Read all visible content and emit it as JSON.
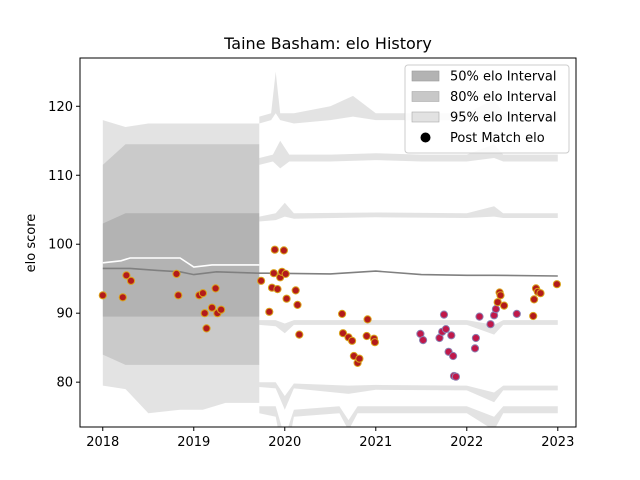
{
  "chart_data": {
    "type": "scatter",
    "title": "Taine Basham: elo History",
    "xlabel": "",
    "ylabel": "elo score",
    "xlim": [
      2017.75,
      2023.2
    ],
    "ylim": [
      73.5,
      127
    ],
    "x_ticks": [
      2018,
      2019,
      2020,
      2021,
      2022,
      2023
    ],
    "x_tick_labels": [
      "2018",
      "2019",
      "2020",
      "2021",
      "2022",
      "2023"
    ],
    "y_ticks": [
      80,
      90,
      100,
      110,
      120
    ],
    "y_tick_labels": [
      "80",
      "90",
      "100",
      "110",
      "120"
    ],
    "grid": false,
    "legend_position": "upper right",
    "legend": [
      {
        "label": "50% elo Interval",
        "kind": "patch",
        "color": "#b3b3b3"
      },
      {
        "label": "80% elo Interval",
        "kind": "patch",
        "color": "#c8c8c8"
      },
      {
        "label": "95% elo Interval",
        "kind": "patch",
        "color": "#e2e2e2"
      },
      {
        "label": "Post Match elo",
        "kind": "marker",
        "color": "#000000"
      }
    ],
    "intervals": {
      "pre_2019_8": {
        "x": [
          2018.0,
          2018.25,
          2018.5,
          2018.85,
          2019.1,
          2019.35,
          2019.72
        ],
        "p95_hi": [
          118,
          117,
          117.5,
          117.5,
          117.5,
          117.5,
          117.5
        ],
        "p95_lo": [
          79.5,
          79,
          75.5,
          76,
          76,
          77,
          77
        ],
        "p80_hi": [
          111.5,
          114.5,
          114.5,
          114.5,
          114.5,
          114.5,
          114.5
        ],
        "p80_lo": [
          84,
          82.5,
          82.5,
          82.5,
          82.5,
          82.5,
          82.5
        ],
        "p50_hi": [
          103,
          104.5,
          104.5,
          104.5,
          104.5,
          104.5,
          104.5
        ],
        "p50_lo": [
          89.5,
          89.5,
          89.5,
          89.5,
          89.5,
          89.5,
          89.5
        ]
      }
    },
    "mean_line": {
      "x": [
        2018.0,
        2018.3,
        2018.6,
        2018.85,
        2019.0,
        2019.25,
        2019.72,
        2019.8,
        2020.5,
        2021.0,
        2021.5,
        2022.0,
        2022.3,
        2023.0
      ],
      "y": [
        96.5,
        96.5,
        96.2,
        96,
        95.6,
        96.0,
        95.8,
        95.8,
        95.7,
        96.1,
        95.6,
        95.5,
        95.5,
        95.4
      ]
    },
    "upper_white_line": {
      "x": [
        2018.0,
        2018.2,
        2018.3,
        2018.85,
        2019.0,
        2019.2,
        2019.72
      ],
      "y": [
        97.3,
        97.6,
        98.0,
        98.0,
        96.7,
        97.0,
        97.0
      ]
    },
    "points": [
      {
        "x": 2018.0,
        "y": 92.6
      },
      {
        "x": 2018.22,
        "y": 92.3
      },
      {
        "x": 2018.26,
        "y": 95.5
      },
      {
        "x": 2018.31,
        "y": 94.7
      },
      {
        "x": 2018.81,
        "y": 95.7
      },
      {
        "x": 2018.83,
        "y": 92.6
      },
      {
        "x": 2019.06,
        "y": 92.6
      },
      {
        "x": 2019.1,
        "y": 92.9
      },
      {
        "x": 2019.12,
        "y": 90.0
      },
      {
        "x": 2019.14,
        "y": 87.8
      },
      {
        "x": 2019.2,
        "y": 90.8
      },
      {
        "x": 2019.24,
        "y": 93.6
      },
      {
        "x": 2019.26,
        "y": 90.0
      },
      {
        "x": 2019.3,
        "y": 90.5
      },
      {
        "x": 2019.74,
        "y": 94.7
      },
      {
        "x": 2019.83,
        "y": 90.2
      },
      {
        "x": 2019.86,
        "y": 93.7
      },
      {
        "x": 2019.88,
        "y": 95.8
      },
      {
        "x": 2019.89,
        "y": 99.2
      },
      {
        "x": 2019.92,
        "y": 93.5
      },
      {
        "x": 2019.95,
        "y": 95.2
      },
      {
        "x": 2019.97,
        "y": 96.0
      },
      {
        "x": 2019.99,
        "y": 99.1
      },
      {
        "x": 2020.01,
        "y": 95.7
      },
      {
        "x": 2020.02,
        "y": 92.1
      },
      {
        "x": 2020.12,
        "y": 93.3
      },
      {
        "x": 2020.14,
        "y": 91.2
      },
      {
        "x": 2020.16,
        "y": 86.9
      },
      {
        "x": 2020.63,
        "y": 89.9
      },
      {
        "x": 2020.64,
        "y": 87.1
      },
      {
        "x": 2020.7,
        "y": 86.5
      },
      {
        "x": 2020.74,
        "y": 86.0
      },
      {
        "x": 2020.76,
        "y": 83.8
      },
      {
        "x": 2020.8,
        "y": 82.8
      },
      {
        "x": 2020.82,
        "y": 83.4
      },
      {
        "x": 2020.9,
        "y": 86.7
      },
      {
        "x": 2020.91,
        "y": 89.1
      },
      {
        "x": 2020.98,
        "y": 86.3
      },
      {
        "x": 2020.99,
        "y": 85.8
      },
      {
        "x": 2021.49,
        "y": 87.0
      },
      {
        "x": 2021.52,
        "y": 86.1
      },
      {
        "x": 2021.7,
        "y": 86.4
      },
      {
        "x": 2021.73,
        "y": 87.3
      },
      {
        "x": 2021.75,
        "y": 89.8
      },
      {
        "x": 2021.77,
        "y": 87.7
      },
      {
        "x": 2021.8,
        "y": 84.4
      },
      {
        "x": 2021.83,
        "y": 86.8
      },
      {
        "x": 2021.85,
        "y": 83.8
      },
      {
        "x": 2021.86,
        "y": 80.9
      },
      {
        "x": 2021.88,
        "y": 80.8
      },
      {
        "x": 2022.09,
        "y": 84.9
      },
      {
        "x": 2022.1,
        "y": 86.4
      },
      {
        "x": 2022.14,
        "y": 89.5
      },
      {
        "x": 2022.26,
        "y": 88.4
      },
      {
        "x": 2022.3,
        "y": 89.7
      },
      {
        "x": 2022.32,
        "y": 90.6
      },
      {
        "x": 2022.34,
        "y": 91.6
      },
      {
        "x": 2022.36,
        "y": 93.0
      },
      {
        "x": 2022.37,
        "y": 92.6
      },
      {
        "x": 2022.41,
        "y": 91.1
      },
      {
        "x": 2022.55,
        "y": 89.9
      },
      {
        "x": 2022.73,
        "y": 89.6
      },
      {
        "x": 2022.74,
        "y": 92.0
      },
      {
        "x": 2022.76,
        "y": 93.6
      },
      {
        "x": 2022.78,
        "y": 93.1
      },
      {
        "x": 2022.81,
        "y": 92.9
      },
      {
        "x": 2022.99,
        "y": 94.2
      }
    ]
  }
}
